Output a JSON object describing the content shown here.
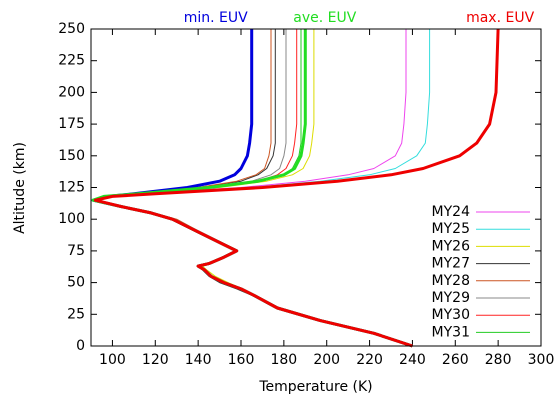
{
  "chart_data": {
    "type": "line",
    "x_label": "Temperature (K)",
    "y_label": "Altitude (km)",
    "xlim": [
      90,
      300
    ],
    "xticks": [
      100,
      120,
      140,
      160,
      180,
      200,
      220,
      240,
      260,
      280,
      300
    ],
    "ylim": [
      0,
      250
    ],
    "yticks": [
      0,
      25,
      50,
      75,
      100,
      125,
      150,
      175,
      200,
      225,
      250
    ],
    "y": [
      0,
      10,
      20,
      30,
      40,
      45,
      50,
      55,
      60,
      63,
      65,
      70,
      75,
      80,
      90,
      100,
      105,
      110,
      115,
      118,
      120,
      125,
      130,
      135,
      140,
      150,
      160,
      175,
      200,
      250
    ],
    "series": [
      {
        "name": "MY24",
        "color": "#ee44ee",
        "x": [
          240,
          222,
          197,
          177,
          166,
          160,
          152,
          146,
          143,
          140,
          145,
          152,
          158,
          152,
          140,
          128,
          118,
          104,
          91,
          96,
          108,
          160,
          190,
          210,
          222,
          232,
          235,
          236,
          237,
          237
        ]
      },
      {
        "name": "MY25",
        "color": "#33dddd",
        "x": [
          240,
          222,
          197,
          177,
          166,
          160,
          153,
          147,
          143,
          141,
          146,
          152,
          157,
          152,
          140,
          128,
          118,
          104,
          91,
          96,
          108,
          165,
          197,
          220,
          232,
          242,
          246,
          247,
          248,
          248
        ]
      },
      {
        "name": "MY26",
        "color": "#dddd00",
        "x": [
          240,
          222,
          197,
          177,
          167,
          161,
          154,
          148,
          144,
          142,
          146,
          153,
          158,
          152,
          140,
          129,
          119,
          105,
          91,
          96,
          108,
          150,
          172,
          184,
          189,
          192,
          193,
          194,
          194,
          194
        ]
      },
      {
        "name": "MY27",
        "color": "#333333",
        "x": [
          240,
          222,
          196,
          176,
          165,
          158,
          150,
          145,
          142,
          140,
          144,
          151,
          157,
          151,
          139,
          128,
          118,
          104,
          91,
          96,
          108,
          140,
          160,
          168,
          172,
          175,
          176,
          176,
          176,
          176
        ]
      },
      {
        "name": "MY28",
        "color": "#cc5522",
        "x": [
          240,
          222,
          197,
          178,
          166,
          160,
          152,
          146,
          143,
          140,
          145,
          152,
          158,
          152,
          141,
          130,
          119,
          104,
          91,
          96,
          108,
          140,
          158,
          167,
          171,
          173,
          174,
          174,
          174,
          174
        ]
      },
      {
        "name": "MY29",
        "color": "#888888",
        "x": [
          240,
          222,
          197,
          177,
          166,
          160,
          152,
          146,
          143,
          140,
          145,
          152,
          158,
          152,
          140,
          129,
          118,
          104,
          91,
          96,
          108,
          145,
          165,
          174,
          178,
          180,
          181,
          181,
          181,
          181
        ]
      },
      {
        "name": "MY30",
        "color": "#ff2222",
        "x": [
          240,
          222,
          197,
          177,
          166,
          160,
          152,
          146,
          143,
          140,
          145,
          152,
          158,
          152,
          140,
          129,
          118,
          104,
          91,
          96,
          108,
          147,
          168,
          177,
          181,
          184,
          185,
          186,
          186,
          186
        ]
      },
      {
        "name": "MY31",
        "color": "#22cc22",
        "x": [
          240,
          222,
          197,
          177,
          166,
          160,
          152,
          146,
          143,
          140,
          145,
          152,
          158,
          152,
          140,
          128,
          118,
          104,
          91,
          96,
          108,
          148,
          170,
          180,
          184,
          187,
          188,
          188,
          188,
          188
        ]
      }
    ],
    "euv_series": [
      {
        "name": "min. EUV",
        "color": "#0000dd",
        "x": [
          240,
          222,
          197,
          177,
          166,
          160,
          152,
          146,
          143,
          140,
          145,
          152,
          158,
          152,
          140,
          128,
          118,
          104,
          91,
          98,
          110,
          135,
          150,
          157,
          160,
          163,
          164,
          165,
          165,
          165
        ]
      },
      {
        "name": "ave. EUV",
        "color": "#22dd22",
        "x": [
          240,
          222,
          197,
          177,
          166,
          160,
          152,
          146,
          143,
          140,
          145,
          152,
          158,
          152,
          140,
          128,
          118,
          104,
          91,
          96,
          112,
          145,
          168,
          180,
          185,
          188,
          189,
          190,
          190,
          190
        ]
      },
      {
        "name": "max. EUV",
        "color": "#ee0000",
        "x": [
          240,
          222,
          197,
          177,
          166,
          160,
          152,
          146,
          143,
          140,
          145,
          152,
          158,
          152,
          140,
          128,
          118,
          104,
          92,
          100,
          120,
          170,
          205,
          230,
          245,
          262,
          270,
          276,
          279,
          280
        ]
      }
    ]
  }
}
